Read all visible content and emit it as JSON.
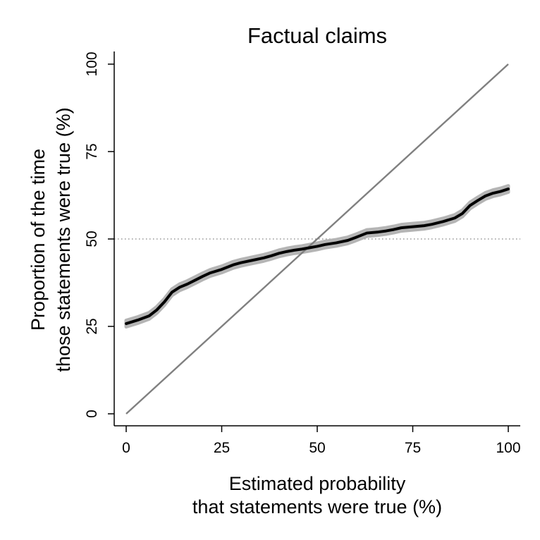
{
  "chart_data": {
    "type": "line",
    "title": "Factual claims",
    "xlabel_lines": [
      "Estimated probability",
      "that statements were true (%)"
    ],
    "ylabel_lines": [
      "Proportion of the time",
      "those statements were true (%)"
    ],
    "xlim": [
      0,
      100
    ],
    "ylim": [
      0,
      100
    ],
    "x_ticks": [
      "0",
      "25",
      "50",
      "75",
      "100"
    ],
    "y_ticks": [
      "0",
      "25",
      "50",
      "75",
      "100"
    ],
    "reference_hline": 50,
    "grid": false,
    "colors": {
      "fit_line": "#000000",
      "confidence_band": "#b5b5b5",
      "diagonal": "#808080",
      "hline": "#808080",
      "axis": "#000000"
    },
    "series": [
      {
        "style": "fit-with-band",
        "x": [
          0,
          3,
          6,
          8,
          10,
          12,
          14,
          16,
          18,
          20,
          22,
          25,
          28,
          30,
          33,
          36,
          38,
          40,
          42,
          44,
          46,
          48,
          50,
          52,
          55,
          58,
          60,
          63,
          66,
          68,
          70,
          72,
          75,
          78,
          80,
          83,
          86,
          88,
          90,
          92,
          94,
          96,
          98,
          100
        ],
        "y": [
          25.8,
          26.8,
          28.0,
          29.7,
          32.0,
          34.8,
          36.2,
          37.1,
          38.2,
          39.3,
          40.3,
          41.3,
          42.6,
          43.2,
          43.9,
          44.6,
          45.2,
          45.9,
          46.4,
          46.8,
          47.1,
          47.5,
          47.9,
          48.4,
          48.9,
          49.6,
          50.4,
          51.7,
          52.0,
          52.3,
          52.7,
          53.2,
          53.5,
          53.8,
          54.2,
          55.0,
          56.0,
          57.3,
          59.6,
          61.0,
          62.3,
          63.1,
          63.6,
          64.3
        ],
        "band_halfwidth": 0.9
      },
      {
        "style": "reference-diagonal",
        "x": [
          0,
          100
        ],
        "y": [
          0,
          100
        ]
      }
    ]
  }
}
